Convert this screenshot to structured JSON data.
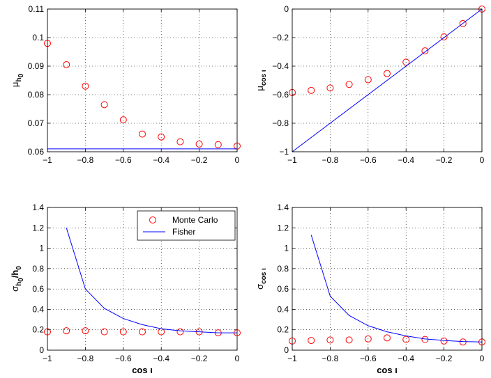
{
  "colors": {
    "monte_carlo": "#ff0000",
    "fisher": "#0000ff",
    "grid": "#000000"
  },
  "legend": {
    "monte_carlo": "Monte Carlo",
    "fisher": "Fisher",
    "placement": "top-right"
  },
  "chart_data": [
    {
      "type": "scatter",
      "ylabel_main": "μ",
      "ylabel_sub": "h",
      "ylabel_subsub": "0",
      "ylabel": "μ_h0",
      "xlabel": "",
      "xlim": [
        -1,
        0
      ],
      "ylim": [
        0.06,
        0.11
      ],
      "xticks": [
        -1,
        -0.8,
        -0.6,
        -0.4,
        -0.2,
        0
      ],
      "xtick_labels": [
        "−1",
        "−0.8",
        "−0.6",
        "−0.4",
        "−0.2",
        "0"
      ],
      "yticks": [
        0.06,
        0.07,
        0.08,
        0.09,
        0.1,
        0.11
      ],
      "ytick_labels": [
        "0.06",
        "0.07",
        "0.08",
        "0.09",
        "0.1",
        "0.11"
      ],
      "grid": true,
      "series": [
        {
          "name": "Monte Carlo",
          "kind": "markers",
          "x": [
            -1,
            -0.9,
            -0.8,
            -0.7,
            -0.6,
            -0.5,
            -0.4,
            -0.3,
            -0.2,
            -0.1,
            0
          ],
          "y": [
            0.098,
            0.0905,
            0.083,
            0.0765,
            0.0712,
            0.0662,
            0.0652,
            0.0635,
            0.0627,
            0.0625,
            0.062
          ]
        },
        {
          "name": "Fisher",
          "kind": "line",
          "x": [
            -1,
            0
          ],
          "y": [
            0.061,
            0.061
          ]
        }
      ]
    },
    {
      "type": "scatter",
      "ylabel_main": "μ",
      "ylabel_sub": "cos ι",
      "ylabel": "μ_cos ι",
      "xlabel": "",
      "xlim": [
        -1,
        0
      ],
      "ylim": [
        -1,
        0
      ],
      "xticks": [
        -1,
        -0.8,
        -0.6,
        -0.4,
        -0.2,
        0
      ],
      "xtick_labels": [
        "−1",
        "−0.8",
        "−0.6",
        "−0.4",
        "−0.2",
        "0"
      ],
      "yticks": [
        -1,
        -0.8,
        -0.6,
        -0.4,
        -0.2,
        0
      ],
      "ytick_labels": [
        "−1",
        "−0.8",
        "−0.6",
        "−0.4",
        "−0.2",
        "0"
      ],
      "grid": true,
      "series": [
        {
          "name": "Monte Carlo",
          "kind": "markers",
          "x": [
            -1,
            -0.9,
            -0.8,
            -0.7,
            -0.6,
            -0.5,
            -0.4,
            -0.3,
            -0.2,
            -0.1,
            0
          ],
          "y": [
            -0.585,
            -0.57,
            -0.553,
            -0.528,
            -0.495,
            -0.452,
            -0.372,
            -0.293,
            -0.195,
            -0.102,
            0
          ]
        },
        {
          "name": "Fisher",
          "kind": "line",
          "x": [
            -1,
            0
          ],
          "y": [
            -1,
            0
          ]
        }
      ]
    },
    {
      "type": "scatter",
      "ylabel_main": "σ",
      "ylabel_sub": "h",
      "ylabel_subsub": "0",
      "ylabel_tail": "/h",
      "ylabel_tailsub": "0",
      "ylabel": "σ_h0 / h_0",
      "xlabel": "cos ι",
      "xlim": [
        -1,
        0
      ],
      "ylim": [
        0,
        1.4
      ],
      "xticks": [
        -1,
        -0.8,
        -0.6,
        -0.4,
        -0.2,
        0
      ],
      "xtick_labels": [
        "−1",
        "−0.8",
        "−0.6",
        "−0.4",
        "−0.2",
        "0"
      ],
      "yticks": [
        0,
        0.2,
        0.4,
        0.6,
        0.8,
        1,
        1.2,
        1.4
      ],
      "ytick_labels": [
        "0",
        "0.2",
        "0.4",
        "0.6",
        "0.8",
        "1",
        "1.2",
        "1.4"
      ],
      "grid": true,
      "legend": true,
      "series": [
        {
          "name": "Monte Carlo",
          "kind": "markers",
          "x": [
            -1,
            -0.9,
            -0.8,
            -0.7,
            -0.6,
            -0.5,
            -0.4,
            -0.3,
            -0.2,
            -0.1,
            0
          ],
          "y": [
            0.18,
            0.19,
            0.19,
            0.18,
            0.18,
            0.18,
            0.18,
            0.18,
            0.18,
            0.17,
            0.17
          ]
        },
        {
          "name": "Fisher",
          "kind": "line",
          "x": [
            -0.9,
            -0.8,
            -0.7,
            -0.6,
            -0.5,
            -0.4,
            -0.3,
            -0.2,
            -0.1,
            0
          ],
          "y": [
            1.2,
            0.6,
            0.41,
            0.31,
            0.25,
            0.21,
            0.19,
            0.18,
            0.17,
            0.17
          ]
        }
      ]
    },
    {
      "type": "scatter",
      "ylabel_main": "σ",
      "ylabel_sub": "cos ι",
      "ylabel": "σ_cos ι",
      "xlabel": "cos ι",
      "xlim": [
        -1,
        0
      ],
      "ylim": [
        0,
        1.4
      ],
      "xticks": [
        -1,
        -0.8,
        -0.6,
        -0.4,
        -0.2,
        0
      ],
      "xtick_labels": [
        "−1",
        "−0.8",
        "−0.6",
        "−0.4",
        "−0.2",
        "0"
      ],
      "yticks": [
        0,
        0.2,
        0.4,
        0.6,
        0.8,
        1,
        1.2,
        1.4
      ],
      "ytick_labels": [
        "0",
        "0.2",
        "0.4",
        "0.6",
        "0.8",
        "1",
        "1.2",
        "1.4"
      ],
      "grid": true,
      "series": [
        {
          "name": "Monte Carlo",
          "kind": "markers",
          "x": [
            -1,
            -0.9,
            -0.8,
            -0.7,
            -0.6,
            -0.5,
            -0.4,
            -0.3,
            -0.2,
            -0.1,
            0
          ],
          "y": [
            0.09,
            0.095,
            0.1,
            0.1,
            0.11,
            0.12,
            0.105,
            0.105,
            0.09,
            0.08,
            0.08
          ]
        },
        {
          "name": "Fisher",
          "kind": "line",
          "x": [
            -0.9,
            -0.8,
            -0.7,
            -0.6,
            -0.5,
            -0.4,
            -0.3,
            -0.2,
            -0.1,
            0
          ],
          "y": [
            1.13,
            0.53,
            0.34,
            0.24,
            0.18,
            0.14,
            0.11,
            0.095,
            0.085,
            0.08
          ]
        }
      ]
    }
  ]
}
